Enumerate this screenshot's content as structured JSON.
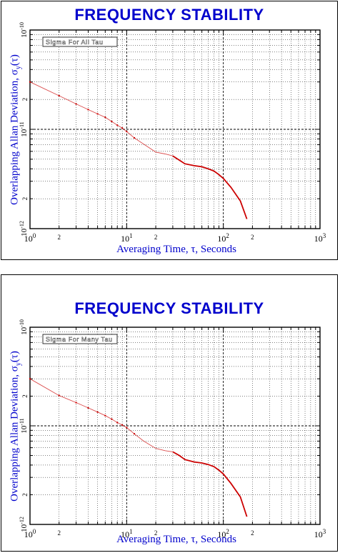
{
  "chart_data": [
    {
      "type": "line",
      "title": "FREQUENCY STABILITY",
      "legend": "Sigma For All Tau",
      "legend_placement": "top-left",
      "xlabel": "Averaging Time, τ, Seconds",
      "ylabel": "Overlapping Allan Deviation, σy(τ)",
      "xscale": "log",
      "yscale": "log",
      "xlim": [
        1,
        1000
      ],
      "ylim": [
        1e-12,
        1e-10
      ],
      "grid": true,
      "x_major_ticks": [
        {
          "base": "10",
          "exp": "0"
        },
        {
          "base": "10",
          "exp": "1"
        },
        {
          "base": "10",
          "exp": "2"
        },
        {
          "base": "10",
          "exp": "3"
        }
      ],
      "x_minor_labels": [
        "2",
        "2",
        "2"
      ],
      "y_major_ticks": [
        {
          "base": "10",
          "exp": "-12"
        },
        {
          "base": "10",
          "exp": "-11"
        },
        {
          "base": "10",
          "exp": "-10"
        }
      ],
      "y_minor_labels": [
        "2",
        "2"
      ],
      "series": [
        {
          "color": "#cc0000",
          "x": [
            1,
            2,
            3,
            4,
            5,
            6,
            7,
            8,
            9,
            10,
            12,
            15,
            20,
            25,
            30,
            35,
            40,
            50,
            60,
            70,
            80,
            90,
            100,
            120,
            150,
            175
          ],
          "y": [
            3e-11,
            2.18e-11,
            1.8e-11,
            1.58e-11,
            1.43e-11,
            1.32e-11,
            1.2e-11,
            1.1e-11,
            1.03e-11,
            9.5e-12,
            8.2e-12,
            7.1e-12,
            5.9e-12,
            5.65e-12,
            5.4e-12,
            4.9e-12,
            4.5e-12,
            4.3e-12,
            4.2e-12,
            4e-12,
            3.8e-12,
            3.5e-12,
            3.2e-12,
            2.6e-12,
            1.9e-12,
            1.25e-12
          ]
        }
      ]
    },
    {
      "type": "line",
      "title": "FREQUENCY STABILITY",
      "legend": "Sigma For Many Tau",
      "legend_placement": "top-left",
      "xlabel": "Averaging Time, τ, Seconds",
      "ylabel": "Overlapping Allan Deviation, σy(τ)",
      "xscale": "log",
      "yscale": "log",
      "xlim": [
        1,
        1000
      ],
      "ylim": [
        1e-12,
        1e-10
      ],
      "grid": true,
      "x_major_ticks": [
        {
          "base": "10",
          "exp": "0"
        },
        {
          "base": "10",
          "exp": "1"
        },
        {
          "base": "10",
          "exp": "2"
        },
        {
          "base": "10",
          "exp": "3"
        }
      ],
      "x_minor_labels": [
        "2",
        "2",
        "2"
      ],
      "y_major_ticks": [
        {
          "base": "10",
          "exp": "-12"
        },
        {
          "base": "10",
          "exp": "-11"
        },
        {
          "base": "10",
          "exp": "-10"
        }
      ],
      "y_minor_labels": [
        "2",
        "2"
      ],
      "series": [
        {
          "color": "#cc0000",
          "x": [
            1,
            2,
            3,
            4,
            5,
            6,
            7,
            8,
            9,
            10,
            12,
            15,
            20,
            25,
            30,
            35,
            40,
            50,
            60,
            70,
            80,
            90,
            100,
            120,
            150,
            175
          ],
          "y": [
            3e-11,
            2.03e-11,
            1.72e-11,
            1.52e-11,
            1.38e-11,
            1.27e-11,
            1.17e-11,
            1.08e-11,
            1.02e-11,
            9.6e-12,
            8.3e-12,
            7e-12,
            5.9e-12,
            5.6e-12,
            5.45e-12,
            5e-12,
            4.55e-12,
            4.3e-12,
            4.2e-12,
            4.05e-12,
            3.85e-12,
            3.55e-12,
            3.25e-12,
            2.6e-12,
            1.9e-12,
            1.2e-12
          ]
        }
      ]
    }
  ]
}
